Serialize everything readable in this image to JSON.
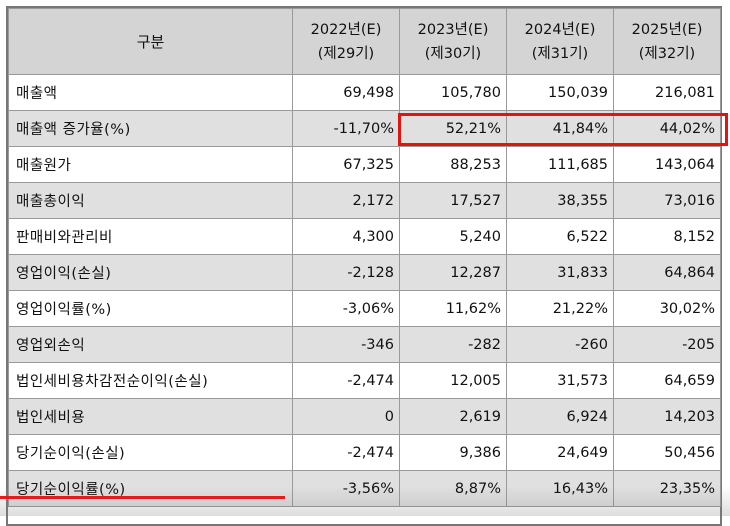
{
  "table": {
    "header": {
      "label": "구분",
      "years": [
        {
          "year": "2022년(E)",
          "term": "(제29기)"
        },
        {
          "year": "2023년(E)",
          "term": "(제30기)"
        },
        {
          "year": "2024년(E)",
          "term": "(제31기)"
        },
        {
          "year": "2025년(E)",
          "term": "(제32기)"
        }
      ]
    },
    "rows": [
      {
        "label": "매출액",
        "values": [
          "69,498",
          "105,780",
          "150,039",
          "216,081"
        ]
      },
      {
        "label": "매출액 증가율(%)",
        "values": [
          "-11,70%",
          "52,21%",
          "41,84%",
          "44,02%"
        ]
      },
      {
        "label": "매출원가",
        "values": [
          "67,325",
          "88,253",
          "111,685",
          "143,064"
        ]
      },
      {
        "label": "매출총이익",
        "values": [
          "2,172",
          "17,527",
          "38,355",
          "73,016"
        ]
      },
      {
        "label": "판매비와관리비",
        "values": [
          "4,300",
          "5,240",
          "6,522",
          "8,152"
        ]
      },
      {
        "label": "영업이익(손실)",
        "values": [
          "-2,128",
          "12,287",
          "31,833",
          "64,864"
        ]
      },
      {
        "label": "영업이익률(%)",
        "values": [
          "-3,06%",
          "11,62%",
          "21,22%",
          "30,02%"
        ]
      },
      {
        "label": "영업외손익",
        "values": [
          "-346",
          "-282",
          "-260",
          "-205"
        ]
      },
      {
        "label": "법인세비용차감전순이익(손실)",
        "values": [
          "-2,474",
          "12,005",
          "31,573",
          "64,659"
        ]
      },
      {
        "label": "법인세비용",
        "values": [
          "0",
          "2,619",
          "6,924",
          "14,203"
        ]
      },
      {
        "label": "당기순이익(손실)",
        "values": [
          "-2,474",
          "9,386",
          "24,649",
          "50,456"
        ]
      },
      {
        "label": "당기순이익률(%)",
        "values": [
          "-3,56%",
          "8,87%",
          "16,43%",
          "23,35%"
        ]
      }
    ]
  },
  "highlight": {
    "row": "매출액 증가율(%)",
    "columns": [
      "2023년(E)",
      "2024년(E)",
      "2025년(E)"
    ],
    "color": "#e3140f"
  },
  "video_progress": {
    "fraction": 0.39,
    "color": "#e31b1b"
  }
}
